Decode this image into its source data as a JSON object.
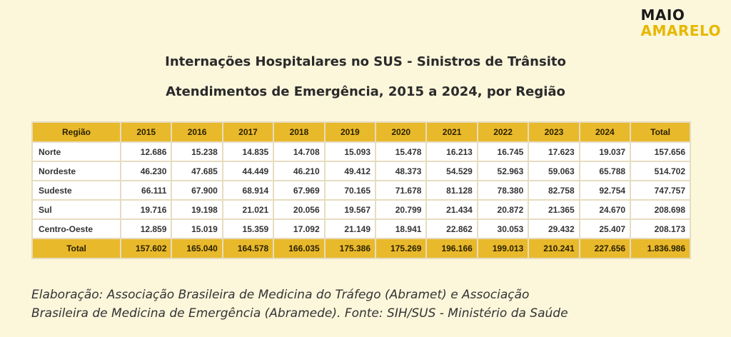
{
  "logo": {
    "line1": "MAIO",
    "line2": "AMARELO"
  },
  "title": "Internações Hospitalares no SUS - Sinistros de Trânsito",
  "subtitle": "Atendimentos de Emergência, 2015 a 2024, por Região",
  "table": {
    "headers": [
      "Região",
      "2015",
      "2016",
      "2017",
      "2018",
      "2019",
      "2020",
      "2021",
      "2022",
      "2023",
      "2024",
      "Total"
    ],
    "rows": [
      [
        "Norte",
        "12.686",
        "15.238",
        "14.835",
        "14.708",
        "15.093",
        "15.478",
        "16.213",
        "16.745",
        "17.623",
        "19.037",
        "157.656"
      ],
      [
        "Nordeste",
        "46.230",
        "47.685",
        "44.449",
        "46.210",
        "49.412",
        "48.373",
        "54.529",
        "52.963",
        "59.063",
        "65.788",
        "514.702"
      ],
      [
        "Sudeste",
        "66.111",
        "67.900",
        "68.914",
        "67.969",
        "70.165",
        "71.678",
        "81.128",
        "78.380",
        "82.758",
        "92.754",
        "747.757"
      ],
      [
        "Sul",
        "19.716",
        "19.198",
        "21.021",
        "20.056",
        "19.567",
        "20.799",
        "21.434",
        "20.872",
        "21.365",
        "24.670",
        "208.698"
      ],
      [
        "Centro-Oeste",
        "12.859",
        "15.019",
        "15.359",
        "17.092",
        "21.149",
        "18.941",
        "22.862",
        "30.053",
        "29.432",
        "25.407",
        "208.173"
      ]
    ],
    "total": [
      "Total",
      "157.602",
      "165.040",
      "164.578",
      "166.035",
      "175.386",
      "175.269",
      "196.166",
      "199.013",
      "210.241",
      "227.656",
      "1.836.986"
    ]
  },
  "credit": {
    "line1": "Elaboração: Associação Brasileira de Medicina do Tráfego (Abramet) e Associação",
    "line2": "Brasileira de Medicina de Emergência (Abramede). Fonte: SIH/SUS - Ministério da Saúde"
  },
  "colors": {
    "background": "#fcf6db",
    "accent": "#e9b92c",
    "logo_accent": "#e6b800"
  }
}
